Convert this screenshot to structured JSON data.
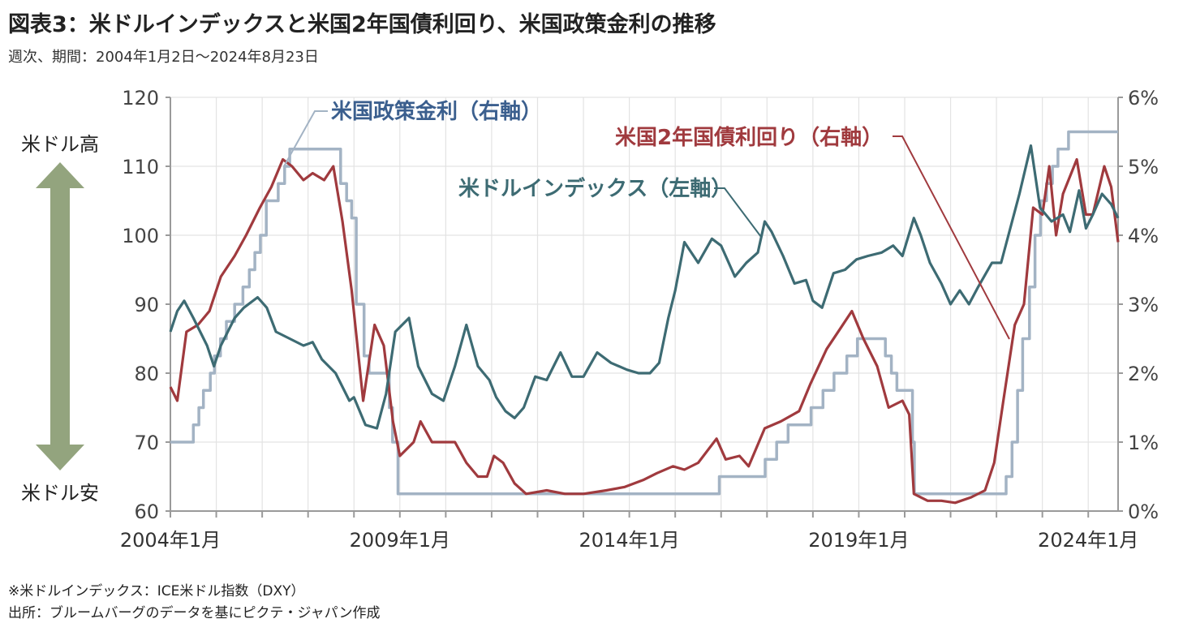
{
  "title": "図表3：米ドルインデックスと米国2年国債利回り、米国政策金利の推移",
  "subtitle": "週次、期間：2004年1月2日～2024年8月23日",
  "notes": {
    "dxy_note": "※米ドルインデックス：ICE米ドル指数（DXY）",
    "source": "出所：ブルームバーグのデータを基にピクテ・ジャパン作成"
  },
  "side_labels": {
    "up": "米ドル高",
    "down": "米ドル安"
  },
  "colors": {
    "dxy": "#3d6b73",
    "yield": "#a03a3e",
    "policy": "#a3b3c4",
    "arrow": "#93a47e",
    "grid": "#e3e3e3",
    "axis": "#9a9a9a"
  },
  "chart_data": {
    "type": "line",
    "x_ticks": [
      "2004年1月",
      "2009年1月",
      "2014年1月",
      "2019年1月",
      "2024年1月"
    ],
    "x_range": [
      "2004-01-02",
      "2024-08-23"
    ],
    "y_left": {
      "ticks": [
        "60",
        "70",
        "80",
        "90",
        "100",
        "110",
        "120"
      ],
      "range": [
        60,
        120
      ]
    },
    "y_right": {
      "ticks": [
        "0%",
        "1%",
        "2%",
        "3%",
        "4%",
        "5%",
        "6%"
      ],
      "range": [
        0,
        6
      ]
    },
    "grid": true,
    "series": [
      {
        "name": "米ドルインデックス（左軸）",
        "axis": "left",
        "color": "#3d6b73",
        "points": [
          [
            2004.0,
            86.0
          ],
          [
            2004.15,
            89.0
          ],
          [
            2004.3,
            90.5
          ],
          [
            2004.5,
            88.0
          ],
          [
            2004.8,
            84.0
          ],
          [
            2004.95,
            81.0
          ],
          [
            2005.1,
            84.0
          ],
          [
            2005.4,
            88.0
          ],
          [
            2005.6,
            89.5
          ],
          [
            2005.9,
            91.0
          ],
          [
            2006.1,
            89.5
          ],
          [
            2006.3,
            86.0
          ],
          [
            2006.6,
            85.0
          ],
          [
            2006.9,
            84.0
          ],
          [
            2007.1,
            84.5
          ],
          [
            2007.3,
            82.0
          ],
          [
            2007.6,
            80.0
          ],
          [
            2007.9,
            76.0
          ],
          [
            2008.0,
            76.5
          ],
          [
            2008.25,
            72.5
          ],
          [
            2008.5,
            72.0
          ],
          [
            2008.7,
            77.0
          ],
          [
            2008.9,
            86.0
          ],
          [
            2009.2,
            88.0
          ],
          [
            2009.4,
            81.0
          ],
          [
            2009.7,
            77.0
          ],
          [
            2009.95,
            76.0
          ],
          [
            2010.2,
            81.0
          ],
          [
            2010.45,
            87.0
          ],
          [
            2010.7,
            81.0
          ],
          [
            2010.95,
            79.0
          ],
          [
            2011.1,
            76.5
          ],
          [
            2011.3,
            74.5
          ],
          [
            2011.5,
            73.5
          ],
          [
            2011.7,
            75.0
          ],
          [
            2011.95,
            79.5
          ],
          [
            2012.2,
            79.0
          ],
          [
            2012.5,
            83.0
          ],
          [
            2012.75,
            79.5
          ],
          [
            2013.0,
            79.5
          ],
          [
            2013.3,
            83.0
          ],
          [
            2013.6,
            81.5
          ],
          [
            2013.95,
            80.5
          ],
          [
            2014.2,
            80.0
          ],
          [
            2014.45,
            80.0
          ],
          [
            2014.65,
            81.5
          ],
          [
            2014.85,
            88.0
          ],
          [
            2015.0,
            92.0
          ],
          [
            2015.2,
            99.0
          ],
          [
            2015.5,
            96.0
          ],
          [
            2015.8,
            99.5
          ],
          [
            2016.0,
            98.5
          ],
          [
            2016.3,
            94.0
          ],
          [
            2016.55,
            96.0
          ],
          [
            2016.8,
            97.5
          ],
          [
            2016.95,
            102.0
          ],
          [
            2017.1,
            100.5
          ],
          [
            2017.35,
            97.0
          ],
          [
            2017.6,
            93.0
          ],
          [
            2017.85,
            93.5
          ],
          [
            2018.0,
            90.5
          ],
          [
            2018.2,
            89.5
          ],
          [
            2018.45,
            94.5
          ],
          [
            2018.7,
            95.0
          ],
          [
            2018.95,
            96.5
          ],
          [
            2019.2,
            97.0
          ],
          [
            2019.5,
            97.5
          ],
          [
            2019.75,
            98.5
          ],
          [
            2019.95,
            97.0
          ],
          [
            2020.2,
            102.5
          ],
          [
            2020.35,
            100.0
          ],
          [
            2020.55,
            96.0
          ],
          [
            2020.8,
            93.0
          ],
          [
            2021.0,
            90.0
          ],
          [
            2021.2,
            92.0
          ],
          [
            2021.4,
            90.0
          ],
          [
            2021.6,
            92.5
          ],
          [
            2021.9,
            96.0
          ],
          [
            2022.1,
            96.0
          ],
          [
            2022.3,
            101.0
          ],
          [
            2022.5,
            106.0
          ],
          [
            2022.75,
            113.0
          ],
          [
            2022.95,
            104.0
          ],
          [
            2023.2,
            102.0
          ],
          [
            2023.45,
            103.0
          ],
          [
            2023.6,
            100.5
          ],
          [
            2023.8,
            106.5
          ],
          [
            2023.95,
            101.0
          ],
          [
            2024.1,
            103.0
          ],
          [
            2024.3,
            106.0
          ],
          [
            2024.5,
            104.5
          ],
          [
            2024.65,
            102.5
          ]
        ]
      },
      {
        "name": "米国2年国債利回り（右軸）",
        "axis": "right",
        "color": "#a03a3e",
        "points": [
          [
            2004.0,
            1.8
          ],
          [
            2004.15,
            1.6
          ],
          [
            2004.35,
            2.6
          ],
          [
            2004.6,
            2.7
          ],
          [
            2004.85,
            2.9
          ],
          [
            2005.1,
            3.4
          ],
          [
            2005.4,
            3.7
          ],
          [
            2005.65,
            4.0
          ],
          [
            2005.95,
            4.4
          ],
          [
            2006.2,
            4.7
          ],
          [
            2006.45,
            5.1
          ],
          [
            2006.65,
            5.0
          ],
          [
            2006.9,
            4.8
          ],
          [
            2007.1,
            4.9
          ],
          [
            2007.35,
            4.8
          ],
          [
            2007.55,
            5.0
          ],
          [
            2007.75,
            4.2
          ],
          [
            2007.95,
            3.2
          ],
          [
            2008.2,
            1.6
          ],
          [
            2008.45,
            2.7
          ],
          [
            2008.65,
            2.4
          ],
          [
            2008.85,
            1.3
          ],
          [
            2009.0,
            0.8
          ],
          [
            2009.3,
            1.0
          ],
          [
            2009.45,
            1.3
          ],
          [
            2009.7,
            1.0
          ],
          [
            2009.95,
            1.0
          ],
          [
            2010.2,
            1.0
          ],
          [
            2010.45,
            0.7
          ],
          [
            2010.7,
            0.5
          ],
          [
            2010.9,
            0.5
          ],
          [
            2011.05,
            0.8
          ],
          [
            2011.25,
            0.7
          ],
          [
            2011.5,
            0.4
          ],
          [
            2011.75,
            0.25
          ],
          [
            2012.2,
            0.3
          ],
          [
            2012.6,
            0.25
          ],
          [
            2013.0,
            0.25
          ],
          [
            2013.5,
            0.3
          ],
          [
            2013.9,
            0.35
          ],
          [
            2014.3,
            0.45
          ],
          [
            2014.6,
            0.55
          ],
          [
            2014.95,
            0.65
          ],
          [
            2015.2,
            0.6
          ],
          [
            2015.5,
            0.7
          ],
          [
            2015.9,
            1.05
          ],
          [
            2016.1,
            0.75
          ],
          [
            2016.4,
            0.8
          ],
          [
            2016.6,
            0.65
          ],
          [
            2016.95,
            1.2
          ],
          [
            2017.3,
            1.3
          ],
          [
            2017.7,
            1.45
          ],
          [
            2017.95,
            1.85
          ],
          [
            2018.3,
            2.35
          ],
          [
            2018.6,
            2.65
          ],
          [
            2018.85,
            2.9
          ],
          [
            2019.1,
            2.5
          ],
          [
            2019.4,
            2.1
          ],
          [
            2019.65,
            1.5
          ],
          [
            2019.95,
            1.6
          ],
          [
            2020.1,
            1.4
          ],
          [
            2020.2,
            0.25
          ],
          [
            2020.5,
            0.15
          ],
          [
            2020.8,
            0.15
          ],
          [
            2021.1,
            0.12
          ],
          [
            2021.45,
            0.2
          ],
          [
            2021.75,
            0.3
          ],
          [
            2021.95,
            0.7
          ],
          [
            2022.15,
            1.6
          ],
          [
            2022.4,
            2.7
          ],
          [
            2022.6,
            3.0
          ],
          [
            2022.8,
            4.4
          ],
          [
            2023.0,
            4.3
          ],
          [
            2023.15,
            5.0
          ],
          [
            2023.3,
            4.0
          ],
          [
            2023.45,
            4.6
          ],
          [
            2023.75,
            5.1
          ],
          [
            2023.95,
            4.3
          ],
          [
            2024.1,
            4.3
          ],
          [
            2024.35,
            5.0
          ],
          [
            2024.5,
            4.7
          ],
          [
            2024.65,
            3.9
          ]
        ]
      },
      {
        "name": "米国政策金利（右軸）",
        "axis": "right",
        "color": "#a3b3c4",
        "step": true,
        "points": [
          [
            2004.0,
            1.0
          ],
          [
            2004.5,
            1.25
          ],
          [
            2004.62,
            1.5
          ],
          [
            2004.72,
            1.75
          ],
          [
            2004.87,
            2.0
          ],
          [
            2004.96,
            2.25
          ],
          [
            2005.09,
            2.5
          ],
          [
            2005.22,
            2.75
          ],
          [
            2005.4,
            3.0
          ],
          [
            2005.58,
            3.25
          ],
          [
            2005.72,
            3.5
          ],
          [
            2005.84,
            3.75
          ],
          [
            2005.96,
            4.0
          ],
          [
            2006.09,
            4.5
          ],
          [
            2006.35,
            4.75
          ],
          [
            2006.49,
            5.0
          ],
          [
            2006.6,
            5.25
          ],
          [
            2007.71,
            4.75
          ],
          [
            2007.84,
            4.5
          ],
          [
            2007.95,
            4.25
          ],
          [
            2008.05,
            3.0
          ],
          [
            2008.22,
            2.25
          ],
          [
            2008.33,
            2.0
          ],
          [
            2008.77,
            1.5
          ],
          [
            2008.84,
            1.0
          ],
          [
            2008.96,
            0.25
          ],
          [
            2015.96,
            0.5
          ],
          [
            2016.96,
            0.75
          ],
          [
            2017.21,
            1.0
          ],
          [
            2017.46,
            1.25
          ],
          [
            2017.96,
            1.5
          ],
          [
            2018.22,
            1.75
          ],
          [
            2018.46,
            2.0
          ],
          [
            2018.74,
            2.25
          ],
          [
            2018.97,
            2.5
          ],
          [
            2019.58,
            2.25
          ],
          [
            2019.71,
            2.0
          ],
          [
            2019.83,
            1.75
          ],
          [
            2020.17,
            1.0
          ],
          [
            2020.21,
            0.25
          ],
          [
            2022.21,
            0.5
          ],
          [
            2022.34,
            1.0
          ],
          [
            2022.46,
            1.75
          ],
          [
            2022.57,
            2.5
          ],
          [
            2022.72,
            3.25
          ],
          [
            2022.84,
            4.0
          ],
          [
            2022.96,
            4.5
          ],
          [
            2023.09,
            4.75
          ],
          [
            2023.22,
            5.0
          ],
          [
            2023.34,
            5.25
          ],
          [
            2023.57,
            5.5
          ],
          [
            2024.65,
            5.5
          ]
        ]
      }
    ],
    "annotations": {
      "policy": "米国政策金利（右軸）",
      "yield": "米国2年国債利回り（右軸）",
      "dxy": "米ドルインデックス（左軸）"
    }
  }
}
